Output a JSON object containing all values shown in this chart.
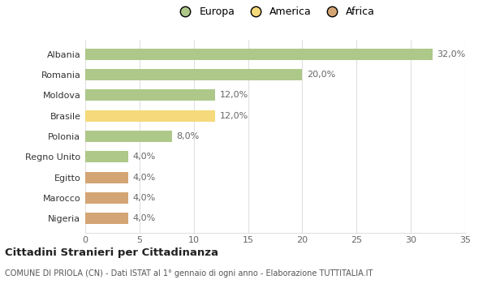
{
  "categories": [
    "Nigeria",
    "Marocco",
    "Egitto",
    "Regno Unito",
    "Polonia",
    "Brasile",
    "Moldova",
    "Romania",
    "Albania"
  ],
  "values": [
    4.0,
    4.0,
    4.0,
    4.0,
    8.0,
    12.0,
    12.0,
    20.0,
    32.0
  ],
  "colors": [
    "#d4a574",
    "#d4a574",
    "#d4a574",
    "#adc888",
    "#adc888",
    "#f5d97a",
    "#adc888",
    "#adc888",
    "#adc888"
  ],
  "labels": [
    "4,0%",
    "4,0%",
    "4,0%",
    "4,0%",
    "8,0%",
    "12,0%",
    "12,0%",
    "20,0%",
    "32,0%"
  ],
  "xlim": [
    0,
    35
  ],
  "xticks": [
    0,
    5,
    10,
    15,
    20,
    25,
    30,
    35
  ],
  "legend_items": [
    {
      "label": "Europa",
      "color": "#adc888"
    },
    {
      "label": "America",
      "color": "#f5d97a"
    },
    {
      "label": "Africa",
      "color": "#d4a574"
    }
  ],
  "title": "Cittadini Stranieri per Cittadinanza",
  "subtitle": "COMUNE DI PRIOLA (CN) - Dati ISTAT al 1° gennaio di ogni anno - Elaborazione TUTTITALIA.IT",
  "background_color": "#ffffff",
  "grid_color": "#e0e0e0"
}
